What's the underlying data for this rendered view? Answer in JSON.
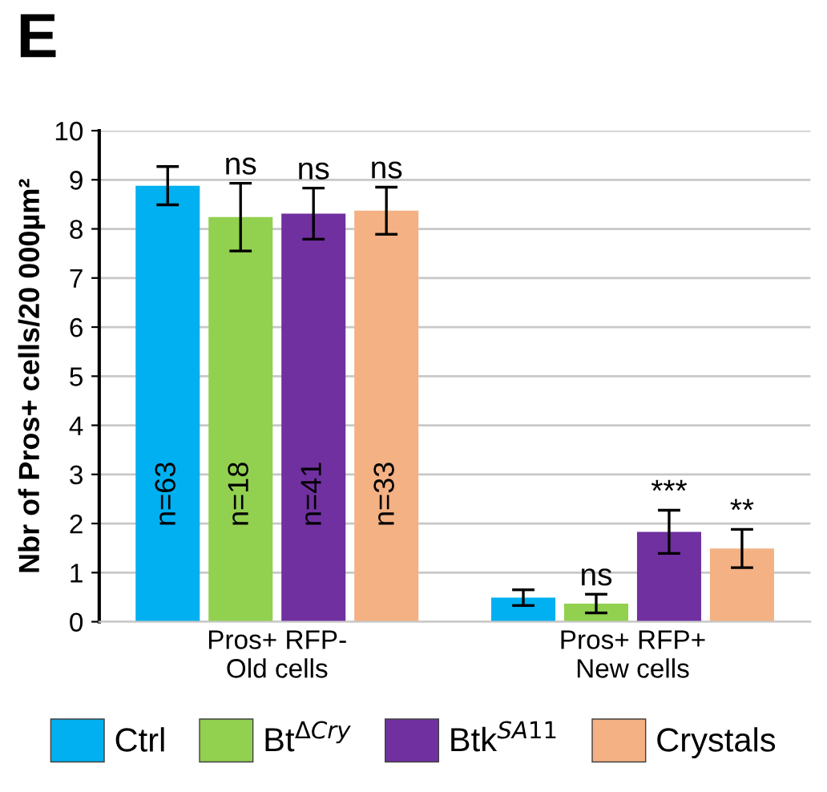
{
  "chart_data": {
    "type": "bar",
    "title": "E",
    "ylabel": "Nbr of Pros+ cells/20 000µm²",
    "categories": [
      "Pros+ RFP-\nOld cells",
      "Pros+ RFP+\nNew cells"
    ],
    "series": [
      {
        "name": "Ctrl",
        "color": "#00b0f0",
        "values": [
          8.88,
          0.49
        ],
        "errors": [
          0.39,
          0.16
        ],
        "value_labels": [
          null,
          null
        ]
      },
      {
        "name": "Bt$^{ΔCry}$",
        "color": "#92d050",
        "values": [
          8.24,
          0.37
        ],
        "errors": [
          0.69,
          0.19
        ],
        "value_labels": [
          "ns",
          "ns"
        ]
      },
      {
        "name": "Btk$^{SA11}$",
        "color": "#7030a0",
        "values": [
          8.31,
          1.83
        ],
        "errors": [
          0.52,
          0.44
        ],
        "value_labels": [
          "ns",
          "***"
        ]
      },
      {
        "name": "Crystals",
        "color": "#f4b183",
        "values": [
          8.37,
          1.49
        ],
        "errors": [
          0.48,
          0.39
        ],
        "value_labels": [
          "ns",
          "**"
        ]
      }
    ],
    "annotations": [
      "n=63",
      "n=18",
      "n=41",
      "n=33"
    ],
    "ylim": [
      0,
      10
    ],
    "yticks": [
      0,
      1,
      2,
      3,
      4,
      5,
      6,
      7,
      8,
      9,
      10
    ],
    "grid": "y",
    "legend": "bottom"
  }
}
